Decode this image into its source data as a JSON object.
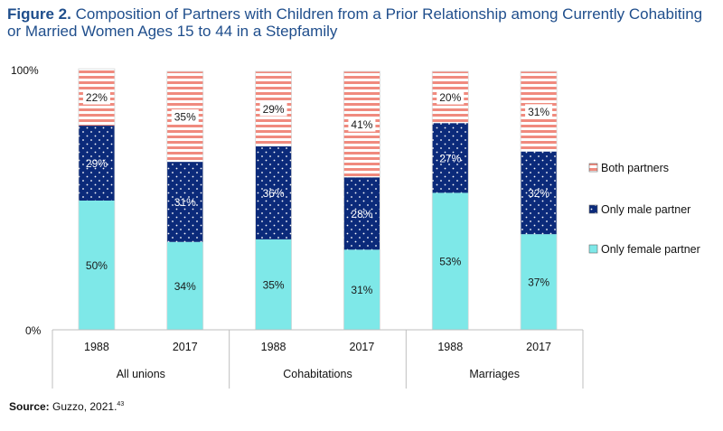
{
  "header": {
    "figure_label": "Figure 2.",
    "title_text": "Composition of Partners with Children from a Prior Relationship among Currently Cohabiting or Married Women Ages 15 to 44 in a Stepfamily"
  },
  "source": {
    "label": "Source:",
    "text": "Guzzo, 2021.",
    "note": "43"
  },
  "chart_data": {
    "type": "bar",
    "stacked": true,
    "title": "",
    "ylim": [
      0,
      100
    ],
    "y_ticks": [
      "0%",
      "100%"
    ],
    "categories": [
      "1988",
      "2017",
      "1988",
      "2017",
      "1988",
      "2017"
    ],
    "groups": [
      {
        "label": "All unions",
        "categories": [
          "1988",
          "2017"
        ]
      },
      {
        "label": "Cohabitations",
        "categories": [
          "1988",
          "2017"
        ]
      },
      {
        "label": "Marriages",
        "categories": [
          "1988",
          "2017"
        ]
      }
    ],
    "series": [
      {
        "name": "Only female partner",
        "color": "#7ee8e8",
        "pattern": "none",
        "values": [
          50,
          34,
          35,
          31,
          53,
          37
        ],
        "labels": [
          "50%",
          "34%",
          "35%",
          "31%",
          "53%",
          "37%"
        ]
      },
      {
        "name": "Only male partner",
        "color": "#0b2a7a",
        "pattern": "dots",
        "values": [
          29,
          31,
          36,
          28,
          27,
          32
        ],
        "labels": [
          "29%",
          "31%",
          "36%",
          "28%",
          "27%",
          "32%"
        ]
      },
      {
        "name": "Both partners",
        "color": "#f08a7e",
        "pattern": "horizontal-stripes",
        "values": [
          22,
          35,
          29,
          41,
          20,
          31
        ],
        "labels": [
          "22%",
          "35%",
          "29%",
          "41%",
          "20%",
          "31%"
        ]
      }
    ],
    "legend": {
      "placement": "right",
      "order": [
        "Both partners",
        "Only male partner",
        "Only female partner"
      ]
    },
    "grid": false
  }
}
